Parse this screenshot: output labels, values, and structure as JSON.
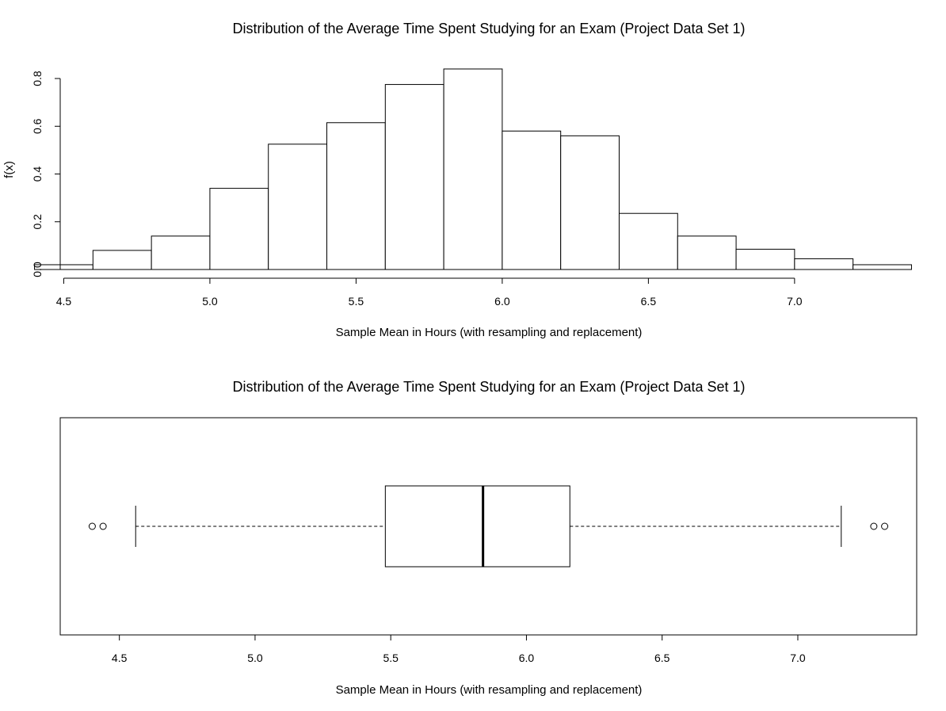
{
  "chart_data": [
    {
      "type": "bar",
      "subtype": "histogram",
      "title": "Distribution of the Average Time Spent Studying for an Exam (Project Data Set 1)",
      "xlabel": "Sample Mean in Hours (with resampling and replacement)",
      "ylabel": "f(x)",
      "bin_edges": [
        4.4,
        4.6,
        4.8,
        5.0,
        5.2,
        5.4,
        5.6,
        5.8,
        6.0,
        6.2,
        6.4,
        6.6,
        6.8,
        7.0,
        7.2,
        7.4
      ],
      "values": [
        0.02,
        0.08,
        0.14,
        0.34,
        0.525,
        0.615,
        0.775,
        0.84,
        0.58,
        0.56,
        0.235,
        0.14,
        0.085,
        0.045,
        0.02
      ],
      "xticks": [
        "4.5",
        "5.0",
        "5.5",
        "6.0",
        "6.5",
        "7.0"
      ],
      "yticks": [
        "0.0",
        "0.2",
        "0.4",
        "0.6",
        "0.8"
      ],
      "xlim": [
        4.282,
        7.518
      ],
      "ylim": [
        0,
        0.84
      ],
      "grid": false
    },
    {
      "type": "boxplot",
      "orientation": "horizontal",
      "title": "Distribution of the Average Time Spent Studying for an Exam (Project Data Set 1)",
      "xlabel": "Sample Mean in Hours (with resampling and replacement)",
      "whisker_low": 4.56,
      "q1": 5.48,
      "median": 5.84,
      "q3": 6.16,
      "whisker_high": 7.16,
      "outliers": [
        4.4,
        4.44,
        7.28,
        7.32
      ],
      "xticks": [
        "4.5",
        "5.0",
        "5.5",
        "6.0",
        "6.5",
        "7.0"
      ],
      "xlim": [
        4.282,
        7.438
      ],
      "grid": false
    }
  ]
}
